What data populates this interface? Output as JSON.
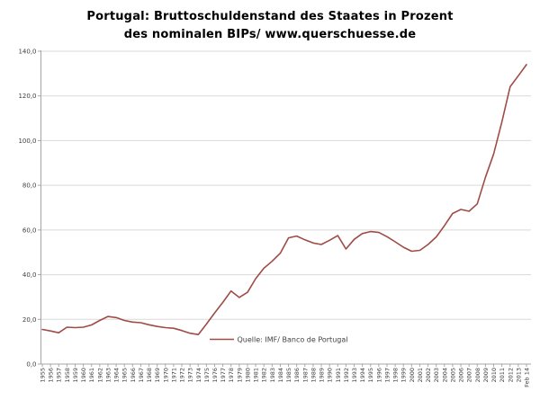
{
  "title": {
    "line1": "Portugal: Bruttoschuldenstand des Staates in Prozent",
    "line2": "des nominalen BIPs/ www.querschuesse.de"
  },
  "legend": {
    "label": "Quelle: IMF/ Banco de Portugal"
  },
  "colors": {
    "line": "#9F4C46",
    "gridline": "#D9D9D9",
    "axis": "#A6A6A6",
    "tick_label": "#404040",
    "title_text": "#000000",
    "background": "#FFFFFF"
  },
  "chart_data": {
    "type": "line",
    "title": "Portugal: Bruttoschuldenstand des Staates in Prozent des nominalen BIPs/ www.querschuesse.de",
    "xlabel": "",
    "ylabel": "",
    "ylim": [
      0,
      140
    ],
    "ytick_step": 20,
    "y_tick_labels": [
      "0,0",
      "20,0",
      "40,0",
      "60,0",
      "80,0",
      "100,0",
      "120,0",
      "140,0"
    ],
    "grid": true,
    "legend_position": "inside-bottom-center",
    "x": [
      "1955",
      "1956",
      "1957",
      "1958",
      "1959",
      "1960",
      "1961",
      "1962",
      "1963",
      "1964",
      "1965",
      "1966",
      "1967",
      "1968",
      "1969",
      "1970",
      "1971",
      "1972",
      "1973",
      "1974",
      "1975",
      "1976",
      "1977",
      "1978",
      "1979",
      "1980",
      "1981",
      "1982",
      "1983",
      "1984",
      "1985",
      "1986",
      "1987",
      "1988",
      "1989",
      "1990",
      "1991",
      "1992",
      "1993",
      "1994",
      "1995",
      "1996",
      "1997",
      "1998",
      "1999",
      "2000",
      "2001",
      "2002",
      "2003",
      "2004",
      "2005",
      "2006",
      "2007",
      "2008",
      "2009",
      "2010",
      "2011",
      "2012",
      "2013",
      "Feb 14"
    ],
    "series": [
      {
        "name": "Quelle: IMF/ Banco de Portugal",
        "color": "#9F4C46",
        "values": [
          15.5,
          14.8,
          14.0,
          16.5,
          16.3,
          16.5,
          17.5,
          19.5,
          21.3,
          20.8,
          19.5,
          18.8,
          18.5,
          17.6,
          16.8,
          16.3,
          16.0,
          15.0,
          13.8,
          13.2,
          17.9,
          22.9,
          27.6,
          32.7,
          29.8,
          32.1,
          38.2,
          42.9,
          46.0,
          49.6,
          56.5,
          57.3,
          55.6,
          54.2,
          53.5,
          55.4,
          57.5,
          51.5,
          55.8,
          58.4,
          59.3,
          58.9,
          57.0,
          54.7,
          52.3,
          50.5,
          50.9,
          53.5,
          56.9,
          61.9,
          67.4,
          69.2,
          68.4,
          71.7,
          83.6,
          94.0,
          108.3,
          124.1,
          129.0,
          134.0
        ]
      }
    ]
  }
}
